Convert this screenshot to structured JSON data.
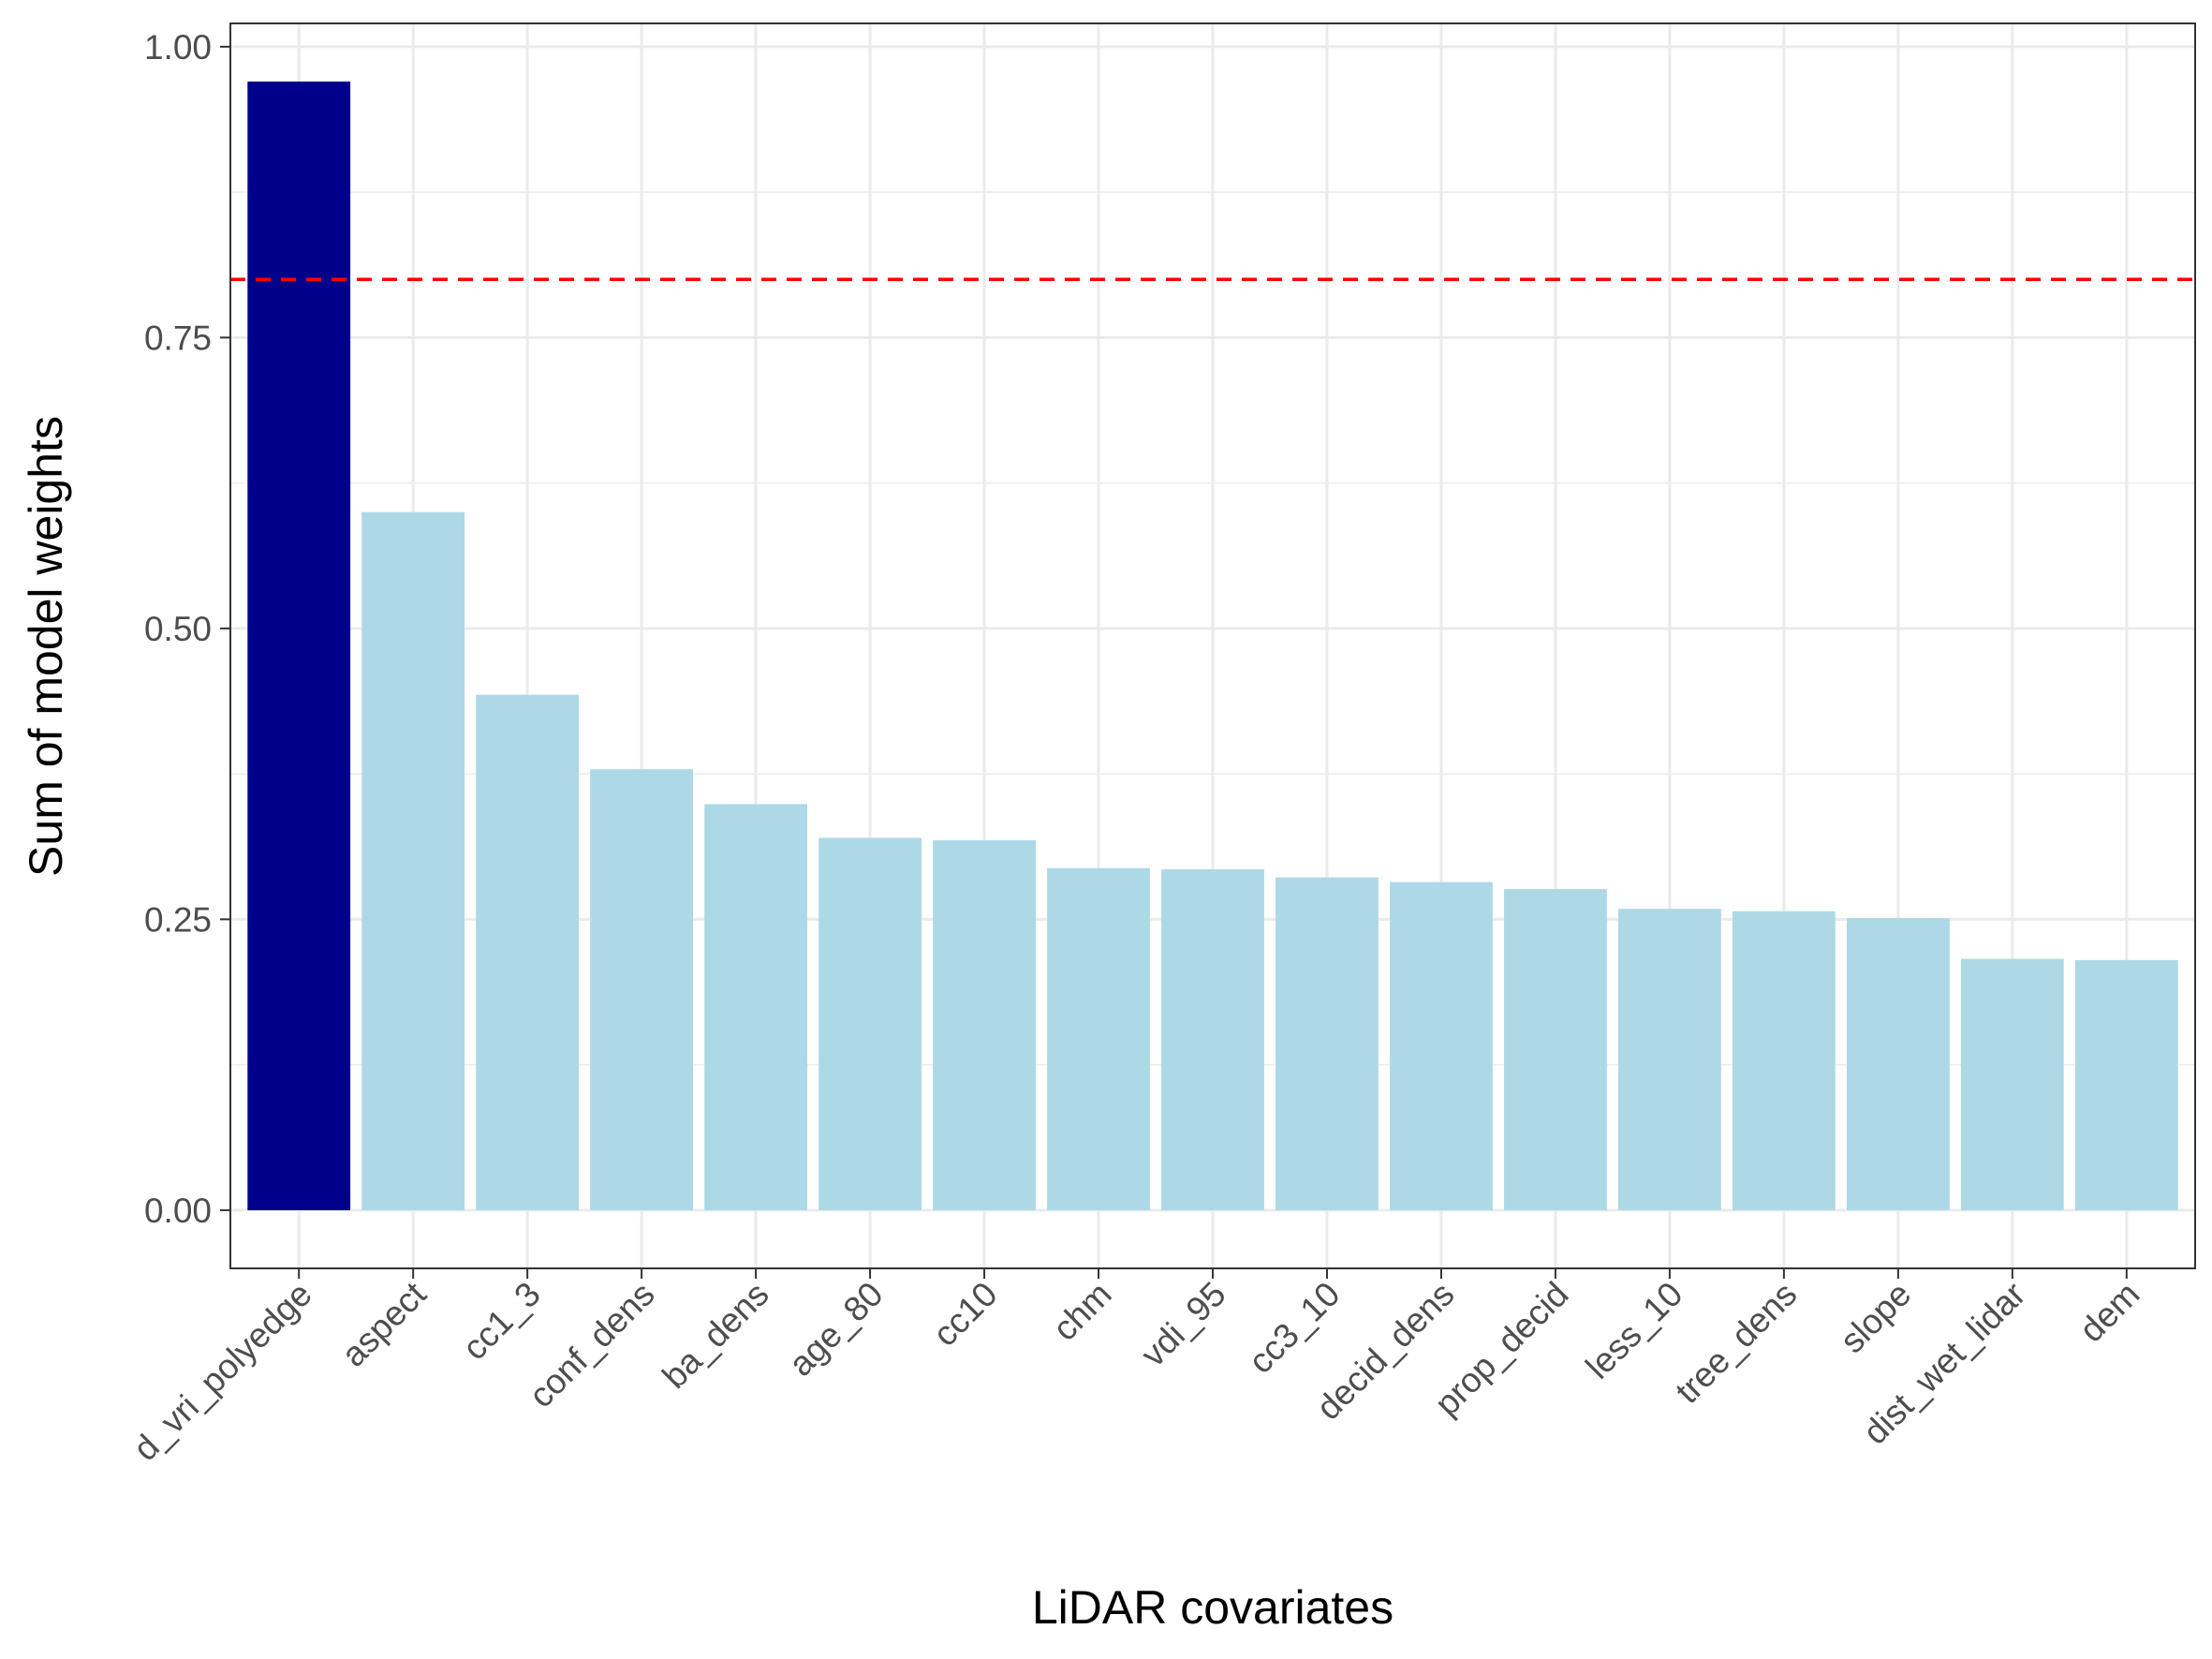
{
  "chart_data": {
    "type": "bar",
    "title": "",
    "xlabel": "LiDAR covariates",
    "ylabel": "Sum of model weights",
    "categories": [
      "d_vri_polyedge",
      "aspect",
      "cc1_3",
      "conf_dens",
      "ba_dens",
      "age_80",
      "cc10",
      "chm",
      "vdi_95",
      "cc3_10",
      "decid_dens",
      "prop_decid",
      "less_10",
      "tree_dens",
      "slope",
      "dist_wet_lidar",
      "dem"
    ],
    "values": [
      0.97,
      0.6,
      0.443,
      0.379,
      0.349,
      0.32,
      0.318,
      0.294,
      0.293,
      0.286,
      0.282,
      0.276,
      0.259,
      0.257,
      0.251,
      0.216,
      0.215
    ],
    "highlight_index": 0,
    "colors": {
      "highlight": "#00008B",
      "default": "#ADD8E6",
      "reference_line": "#FF0000",
      "grid": "#EBEBEB",
      "panel_border": "#333333"
    },
    "reference_line": {
      "y": 0.8,
      "style": "dashed"
    },
    "ylim": [
      -0.05,
      1.02
    ],
    "yticks": [
      0.0,
      0.25,
      0.5,
      0.75,
      1.0
    ],
    "ytick_labels": [
      "0.00",
      "0.25",
      "0.50",
      "0.75",
      "1.00"
    ],
    "grid": true,
    "legend": "none"
  }
}
